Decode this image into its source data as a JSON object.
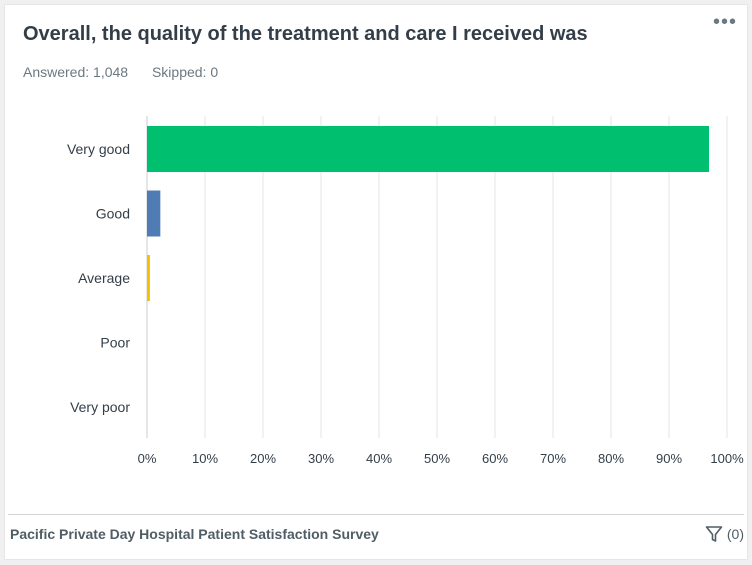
{
  "header": {
    "title": "Overall, the quality of the treatment and care I received was",
    "answered": "Answered: 1,048",
    "skipped": "Skipped: 0",
    "more_icon": "more-dots-icon"
  },
  "footer": {
    "survey_name": "Pacific Private Day Hospital Patient Satisfaction Survey",
    "filter_count": "(0)",
    "filter_icon": "filter-icon"
  },
  "chart_data": {
    "type": "bar",
    "orientation": "horizontal",
    "categories": [
      "Very good",
      "Good",
      "Average",
      "Poor",
      "Very poor"
    ],
    "values": [
      96.9,
      2.3,
      0.5,
      0,
      0
    ],
    "colors": [
      "#00bf6f",
      "#507cb6",
      "#f9be00",
      "#6bc8cd",
      "#ff8b4f"
    ],
    "xlim": [
      0,
      100
    ],
    "xticks": [
      "0%",
      "10%",
      "20%",
      "30%",
      "40%",
      "50%",
      "60%",
      "70%",
      "80%",
      "90%",
      "100%"
    ],
    "grid": true,
    "legend": "none"
  }
}
